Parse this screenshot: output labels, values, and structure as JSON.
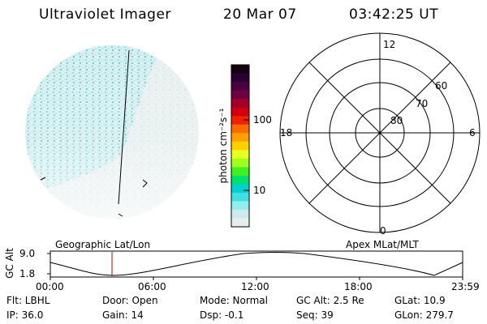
{
  "header": {
    "title": "Ultraviolet Imager",
    "date": "20 Mar 07",
    "time": "03:42:25 UT"
  },
  "colorbar": {
    "unit_label": "photon cm⁻²s⁻¹",
    "ticks": [
      "100",
      "10"
    ],
    "colors": [
      "#140014",
      "#2a0030",
      "#4a0040",
      "#700040",
      "#a0002a",
      "#d00010",
      "#f02000",
      "#ff6a00",
      "#ffa000",
      "#ffd000",
      "#e8ff20",
      "#a0ff20",
      "#40f020",
      "#00e070",
      "#00d0d0",
      "#40e0e0",
      "#90eeee",
      "#cfe9e9",
      "#e6eeee"
    ]
  },
  "polar_plot": {
    "lat_labels": [
      "80",
      "70",
      "60"
    ],
    "mlt_labels": {
      "top": "12",
      "bottom": "0",
      "left": "18",
      "right": "6"
    }
  },
  "timeline": {
    "left_label": "Geographic Lat/Lon",
    "right_label": "Apex MLat/MLT",
    "axis_title": "GC Alt",
    "y_ticks": [
      "9.0",
      "1.8"
    ],
    "x_ticks": [
      "00:00",
      "06:00",
      "12:00",
      "18:00",
      "23:59"
    ],
    "marker_color": "#c00000"
  },
  "status": {
    "flt": "Flt: LBHL",
    "ip": "IP: 36.0",
    "door": "Door: Open",
    "gain": "Gain: 14",
    "mode": "Mode: Normal",
    "dsp": "Dsp:  -0.1",
    "gc_alt": "GC Alt: 2.5 Re",
    "seq": "Seq: 39",
    "glat": "GLat:  10.9",
    "glon": "GLon: 279.7"
  }
}
